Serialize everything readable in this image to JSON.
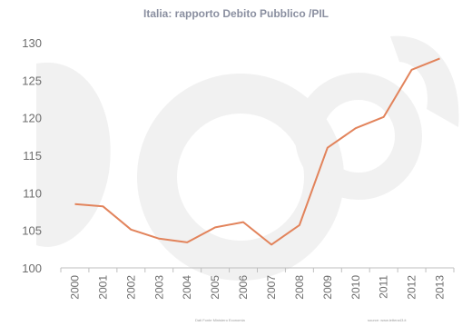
{
  "chart_data": {
    "type": "line",
    "title": "Italia: rapporto Debito Pubblico /PIL",
    "x": [
      "2000",
      "2001",
      "2002",
      "2003",
      "2004",
      "2005",
      "2006",
      "2007",
      "2008",
      "2009",
      "2010",
      "2011",
      "2012",
      "2013"
    ],
    "series": [
      {
        "values": [
          108.5,
          108.2,
          105.1,
          103.9,
          103.4,
          105.4,
          106.1,
          103.1,
          105.7,
          116.0,
          118.6,
          120.1,
          126.4,
          127.9
        ]
      }
    ],
    "ylim": [
      100,
      130
    ],
    "yticks": [
      100,
      105,
      110,
      115,
      120,
      125,
      130
    ],
    "grid": false,
    "line_color": "#e2835b",
    "axis_color": "#bfbfbf"
  },
  "footnotes": {
    "left": "Dati Fonte Ministero Economia",
    "right": "source: www.lettera43.it"
  },
  "watermark": {
    "color": "#f1f1f1"
  }
}
